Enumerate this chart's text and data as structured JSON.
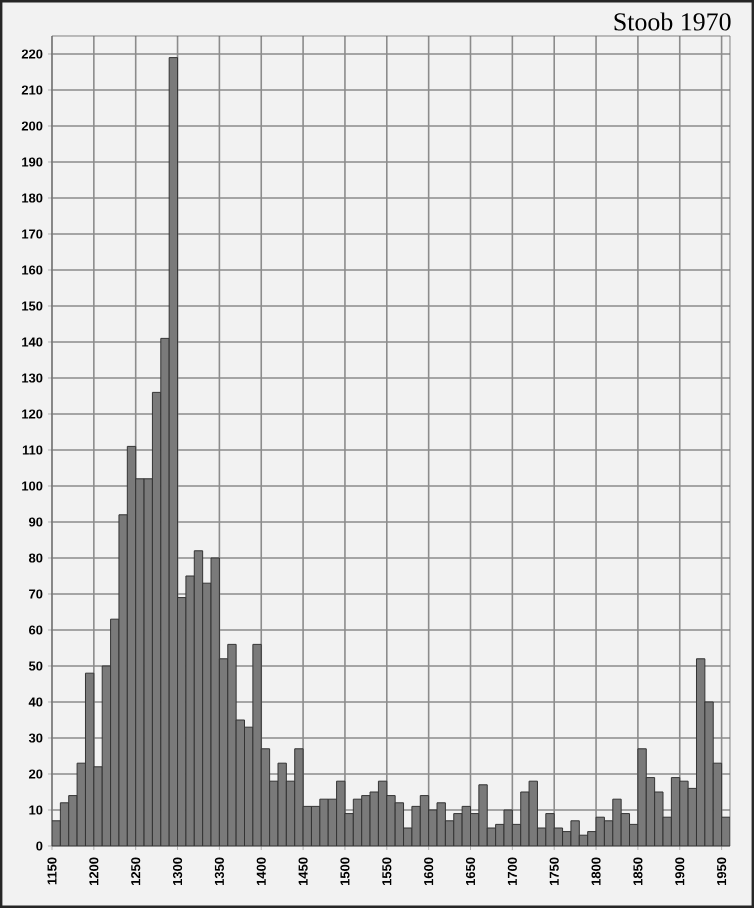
{
  "chart_data": {
    "type": "histogram",
    "title": "Stoob 1970",
    "bins": [
      1150,
      1160,
      1170,
      1180,
      1190,
      1200,
      1210,
      1220,
      1230,
      1240,
      1250,
      1260,
      1270,
      1280,
      1290,
      1300,
      1310,
      1320,
      1330,
      1340,
      1350,
      1360,
      1370,
      1380,
      1390,
      1400,
      1410,
      1420,
      1430,
      1440,
      1450,
      1460,
      1470,
      1480,
      1490,
      1500,
      1510,
      1520,
      1530,
      1540,
      1550,
      1560,
      1570,
      1580,
      1590,
      1600,
      1610,
      1620,
      1630,
      1640,
      1650,
      1660,
      1670,
      1680,
      1690,
      1700,
      1710,
      1720,
      1730,
      1740,
      1750,
      1760,
      1770,
      1780,
      1790,
      1800,
      1810,
      1820,
      1830,
      1840,
      1850,
      1860,
      1870,
      1880,
      1890,
      1900,
      1910,
      1920,
      1930,
      1940,
      1950,
      1960
    ],
    "values": [
      7,
      12,
      14,
      23,
      48,
      22,
      50,
      63,
      92,
      111,
      102,
      102,
      126,
      141,
      219,
      69,
      75,
      82,
      73,
      80,
      52,
      56,
      35,
      33,
      56,
      27,
      18,
      23,
      18,
      27,
      11,
      11,
      13,
      13,
      18,
      9,
      13,
      14,
      15,
      18,
      14,
      12,
      5,
      11,
      14,
      10,
      12,
      7,
      9,
      11,
      9,
      17,
      5,
      6,
      10,
      6,
      15,
      18,
      5,
      9,
      5,
      4,
      7,
      3,
      4,
      8,
      7,
      13,
      9,
      6,
      27,
      19,
      15,
      8,
      19,
      18,
      16,
      52,
      40,
      23,
      8
    ],
    "color": "#7a7a7a",
    "xlim": [
      1150,
      1960
    ],
    "ylim": [
      0,
      225
    ],
    "xticks": [
      1150,
      1200,
      1250,
      1300,
      1350,
      1400,
      1450,
      1500,
      1550,
      1600,
      1650,
      1700,
      1750,
      1800,
      1850,
      1900,
      1950
    ],
    "yticks": [
      0,
      10,
      20,
      30,
      40,
      50,
      60,
      70,
      80,
      90,
      100,
      110,
      120,
      130,
      140,
      150,
      160,
      170,
      180,
      190,
      200,
      210,
      220
    ],
    "grid": true
  }
}
